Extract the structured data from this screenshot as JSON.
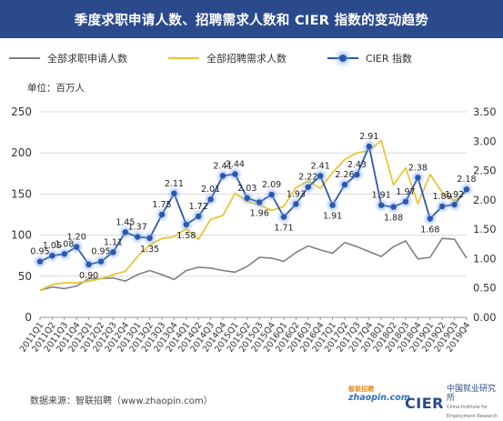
{
  "title": "季度求职申请人数、招聘需求人数和 CIER 指数的变动趋势",
  "legend": {
    "applicants": "全部求职申请人数",
    "demand": "全部招聘需求人数",
    "cier": "CIER 指数"
  },
  "unit": "单位：百万人",
  "source": "数据来源：智联招聘（www.zhaopin.com）",
  "logos": {
    "zhaopin": "zhaopin.com",
    "zhaopin_cn": "智联招聘",
    "cier_mark": "CIER",
    "cier_name": "中国就业研究所",
    "cier_en": "China Institute for Employment Research"
  },
  "colors": {
    "header_bg": "#2b4a8c",
    "applicants_line": "#7f7f7f",
    "demand_line": "#e8c53a",
    "cier_line": "#2b58a7",
    "cier_glow": "#7aa6ff"
  },
  "chart_data": {
    "type": "line",
    "categories": [
      "2011Q1",
      "2011Q2",
      "2011Q3",
      "2011Q4",
      "2012Q1",
      "2012Q2",
      "2012Q3",
      "2012Q4",
      "2013Q1",
      "2013Q2",
      "2013Q3",
      "2013Q4",
      "2014Q1",
      "2014Q2",
      "2014Q3",
      "2014Q4",
      "2015Q1",
      "2015Q2",
      "2015Q3",
      "2015Q4",
      "2016Q1",
      "2016Q2",
      "2016Q3",
      "2016Q4",
      "2017Q1",
      "2017Q2",
      "2017Q3",
      "2017Q4",
      "2018Q1",
      "2018Q2",
      "2018Q3",
      "2018Q4",
      "2019Q1",
      "2019Q2",
      "2019Q3",
      "2019Q4"
    ],
    "left_axis": {
      "ticks": [
        "0",
        "50",
        "100",
        "150",
        "200",
        "250"
      ],
      "ylim": [
        0,
        250
      ]
    },
    "right_axis": {
      "ticks": [
        "0.00",
        "0.50",
        "1.00",
        "1.50",
        "2.00",
        "2.50",
        "3.00",
        "3.50"
      ],
      "ylim": [
        0,
        3.5
      ]
    },
    "series": [
      {
        "name": "全部求职申请人数",
        "axis": "left",
        "values": [
          33,
          37,
          35,
          38,
          47,
          47,
          48,
          44,
          52,
          57,
          52,
          46,
          57,
          61,
          60,
          57,
          55,
          62,
          73,
          72,
          68,
          79,
          87,
          82,
          78,
          91,
          86,
          80,
          74,
          86,
          93,
          71,
          73,
          96,
          95,
          72
        ]
      },
      {
        "name": "全部招聘需求人数",
        "axis": "left",
        "values": [
          33,
          40,
          42,
          42,
          44,
          47,
          52,
          56,
          74,
          88,
          96,
          98,
          108,
          95,
          119,
          124,
          151,
          141,
          137,
          130,
          135,
          158,
          166,
          157,
          176,
          192,
          200,
          203,
          215,
          161,
          182,
          138,
          174,
          152,
          142,
          153
        ]
      },
      {
        "name": "CIER 指数",
        "axis": "right",
        "values": [
          0.95,
          1.05,
          1.08,
          1.2,
          0.9,
          0.95,
          1.11,
          1.45,
          1.37,
          1.35,
          1.75,
          2.11,
          1.58,
          1.72,
          2.01,
          2.41,
          2.44,
          2.03,
          1.96,
          2.09,
          1.71,
          1.93,
          2.22,
          2.41,
          1.91,
          2.26,
          2.43,
          2.91,
          1.91,
          1.88,
          1.97,
          2.38,
          1.68,
          1.89,
          1.92,
          2.18
        ],
        "labels": [
          "0.95",
          "1.05",
          "1.08",
          "1.20",
          "0.90",
          "0.95",
          "1.11",
          "1.45",
          "1.37",
          "1.35",
          "1.75",
          "2.11",
          "1.58",
          "1.72",
          "2.01",
          "2.41",
          "2.44",
          "2.03",
          "1.96",
          "2.09",
          "1.71",
          "1.93",
          "2.22",
          "2.41",
          "1.91",
          "2.26",
          "2.43",
          "2.91",
          "1.91",
          "1.88",
          "1.97",
          "2.38",
          "1.68",
          "1.89",
          "1.92",
          "2.18"
        ]
      }
    ],
    "grid": "horizontal",
    "legend_position": "top"
  }
}
